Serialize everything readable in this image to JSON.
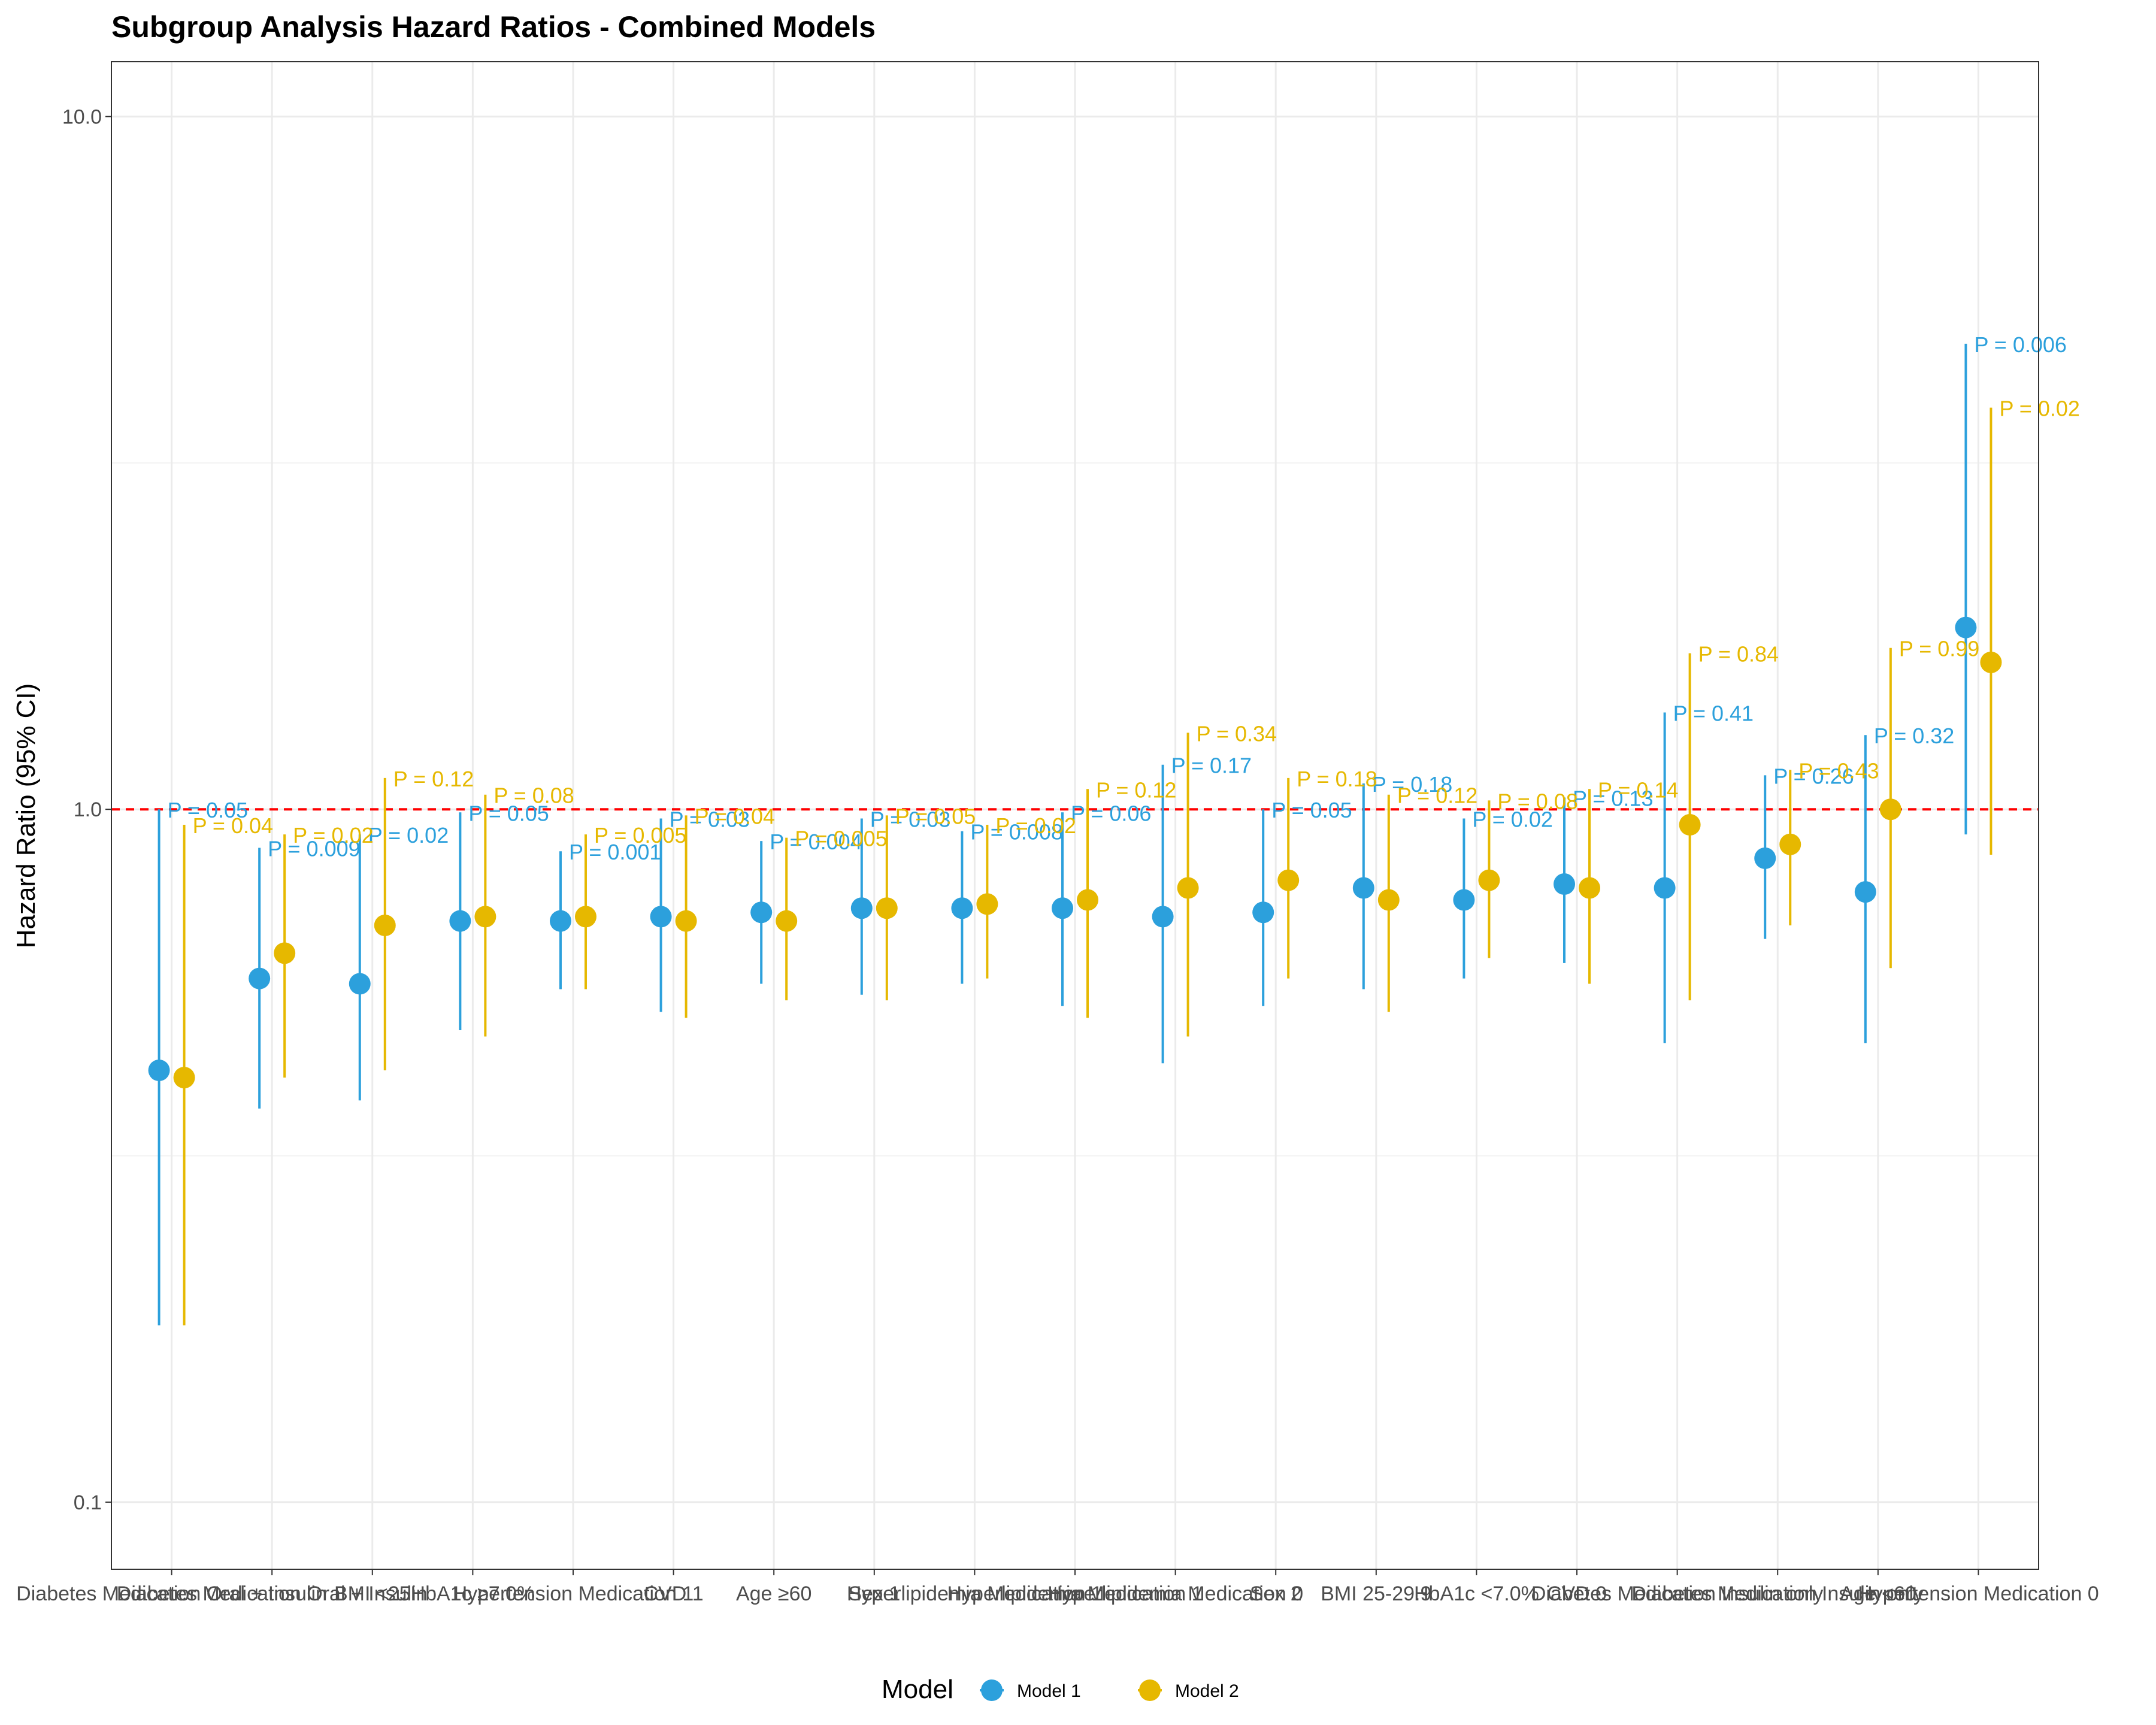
{
  "chart_data": {
    "type": "scatter",
    "title": "Subgroup Analysis Hazard Ratios - Combined Models",
    "xlabel": "",
    "ylabel": "Hazard Ratio (95% CI)",
    "y_scale": "log10",
    "ylim": [
      0.08,
      12
    ],
    "y_ticks": [
      "0.1",
      "1.0",
      "10.0"
    ],
    "reference_line": {
      "y": 1.0,
      "color": "#ff0000",
      "style": "dashed"
    },
    "grid": true,
    "legend": {
      "title": "Model",
      "position": "bottom"
    },
    "categories": [
      "Diabetes Medication Oral + Insulin",
      "Diabetes Medication Oral + Insulin",
      "BMI <25",
      "HbA1c ≥7.0%",
      "Hypertension Medication 1",
      "CVD 1",
      "Age ≥60",
      "Sex 1",
      "Hyperlipidemia Medication 1",
      "Hyperlipidemia Medication 1",
      "Hyperlipidemia Medication 0",
      "Sex 2",
      "BMI 25-29.9",
      "HbA1c <7.0%",
      "CVD 0",
      "Diabetes Medication Insulin only",
      "Diabetes Medication Insulin only",
      "Age <60",
      "Hypertension Medication 0"
    ],
    "series": [
      {
        "name": "Model 1",
        "color": "#2ca0dc",
        "hr": [
          0.42,
          0.57,
          0.56,
          0.69,
          0.69,
          0.7,
          0.71,
          0.72,
          0.72,
          0.72,
          0.7,
          0.71,
          0.77,
          0.74,
          0.78,
          0.77,
          0.85,
          0.76,
          1.83
        ],
        "lower": [
          0.18,
          0.37,
          0.38,
          0.48,
          0.55,
          0.51,
          0.56,
          0.54,
          0.56,
          0.52,
          0.43,
          0.52,
          0.55,
          0.57,
          0.6,
          0.46,
          0.65,
          0.46,
          0.92
        ],
        "upper": [
          1.0,
          0.88,
          0.92,
          0.99,
          0.87,
          0.97,
          0.9,
          0.97,
          0.93,
          0.99,
          1.16,
          1.0,
          1.09,
          0.97,
          1.04,
          1.38,
          1.12,
          1.28,
          4.7
        ],
        "p_labels": [
          "P = 0.05",
          "P = 0.009",
          "P = 0.02",
          "P = 0.05",
          "P = 0.001",
          "P = 0.03",
          "P = 0.004",
          "P = 0.03",
          "P = 0.008",
          "P = 0.06",
          "P = 0.17",
          "P = 0.05",
          "P = 0.18",
          "P = 0.02",
          "P = 0.13",
          "P = 0.41",
          "P = 0.26",
          "P = 0.32",
          "P = 0.006"
        ]
      },
      {
        "name": "Model 2",
        "color": "#e6b800",
        "hr": [
          0.41,
          0.62,
          0.68,
          0.7,
          0.7,
          0.69,
          0.69,
          0.72,
          0.73,
          0.74,
          0.77,
          0.79,
          0.74,
          0.79,
          0.77,
          0.95,
          0.89,
          1.0,
          1.63
        ],
        "lower": [
          0.18,
          0.41,
          0.42,
          0.47,
          0.55,
          0.5,
          0.53,
          0.53,
          0.57,
          0.5,
          0.47,
          0.57,
          0.51,
          0.61,
          0.56,
          0.53,
          0.68,
          0.59,
          0.86
        ],
        "upper": [
          0.95,
          0.92,
          1.11,
          1.05,
          0.92,
          0.98,
          0.91,
          0.98,
          0.95,
          1.07,
          1.29,
          1.11,
          1.05,
          1.03,
          1.07,
          1.68,
          1.14,
          1.71,
          3.8
        ],
        "p_labels": [
          "P = 0.04",
          "P = 0.02",
          "P = 0.12",
          "P = 0.08",
          "P = 0.005",
          "P = 0.04",
          "P = 0.005",
          "P = 0.05",
          "P = 0.02",
          "P = 0.12",
          "P = 0.34",
          "P = 0.18",
          "P = 0.12",
          "P = 0.08",
          "P = 0.14",
          "P = 0.84",
          "P = 0.43",
          "P = 0.99",
          "P = 0.02"
        ]
      }
    ]
  }
}
